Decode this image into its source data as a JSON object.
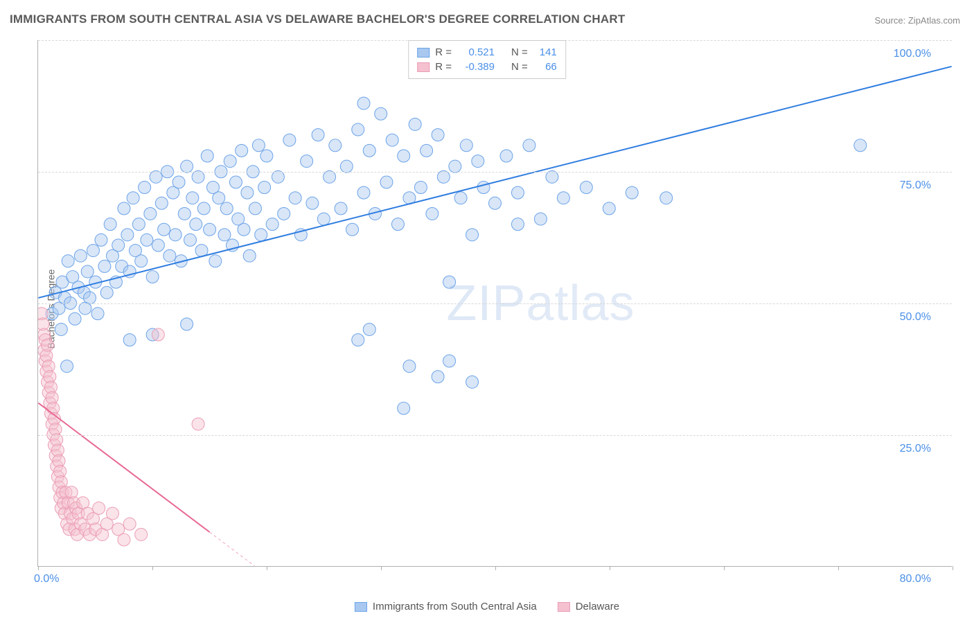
{
  "title": "IMMIGRANTS FROM SOUTH CENTRAL ASIA VS DELAWARE BACHELOR'S DEGREE CORRELATION CHART",
  "source": "Source: ZipAtlas.com",
  "watermark": "ZIPatlas",
  "chart": {
    "type": "scatter",
    "ylabel": "Bachelor's Degree",
    "xlim": [
      0,
      80
    ],
    "ylim": [
      0,
      100
    ],
    "xtick_positions": [
      0,
      10,
      20,
      30,
      40,
      50,
      60,
      70,
      80
    ],
    "xtick_labels_shown": {
      "0": "0.0%",
      "80": "80.0%"
    },
    "ytick_positions": [
      25,
      50,
      75,
      100
    ],
    "ytick_labels": {
      "25": "25.0%",
      "50": "50.0%",
      "75": "75.0%",
      "100": "100.0%"
    },
    "background_color": "#ffffff",
    "grid_color": "#d8d8d8",
    "axis_color": "#b0b0b0",
    "ytick_label_color": "#4a8fe7",
    "xtick_label_color": "#4a8fe7",
    "label_fontsize": 14,
    "tick_fontsize": 16,
    "marker_radius": 9,
    "marker_opacity": 0.45,
    "series": [
      {
        "name": "Immigrants from South Central Asia",
        "color_fill": "#a8c8f0",
        "color_stroke": "#6ca3e8",
        "R": 0.521,
        "N": 141,
        "trend": {
          "x1": 0,
          "y1": 51,
          "x2": 80,
          "y2": 95,
          "color": "#2f7de0",
          "width": 2
        },
        "points": [
          [
            1.2,
            48
          ],
          [
            1.5,
            52
          ],
          [
            1.8,
            49
          ],
          [
            2.0,
            45
          ],
          [
            2.1,
            54
          ],
          [
            2.3,
            51
          ],
          [
            2.5,
            38
          ],
          [
            2.6,
            58
          ],
          [
            2.8,
            50
          ],
          [
            3.0,
            55
          ],
          [
            3.2,
            47
          ],
          [
            3.5,
            53
          ],
          [
            3.7,
            59
          ],
          [
            4.0,
            52
          ],
          [
            4.1,
            49
          ],
          [
            4.3,
            56
          ],
          [
            4.5,
            51
          ],
          [
            4.8,
            60
          ],
          [
            5.0,
            54
          ],
          [
            5.2,
            48
          ],
          [
            5.5,
            62
          ],
          [
            5.8,
            57
          ],
          [
            6.0,
            52
          ],
          [
            6.3,
            65
          ],
          [
            6.5,
            59
          ],
          [
            6.8,
            54
          ],
          [
            7.0,
            61
          ],
          [
            7.3,
            57
          ],
          [
            7.5,
            68
          ],
          [
            7.8,
            63
          ],
          [
            8.0,
            56
          ],
          [
            8.3,
            70
          ],
          [
            8.5,
            60
          ],
          [
            8.8,
            65
          ],
          [
            9.0,
            58
          ],
          [
            9.3,
            72
          ],
          [
            9.5,
            62
          ],
          [
            9.8,
            67
          ],
          [
            10.0,
            55
          ],
          [
            10.3,
            74
          ],
          [
            10.5,
            61
          ],
          [
            10.8,
            69
          ],
          [
            11.0,
            64
          ],
          [
            11.3,
            75
          ],
          [
            11.5,
            59
          ],
          [
            11.8,
            71
          ],
          [
            12.0,
            63
          ],
          [
            12.3,
            73
          ],
          [
            12.5,
            58
          ],
          [
            12.8,
            67
          ],
          [
            13.0,
            76
          ],
          [
            13.3,
            62
          ],
          [
            13.5,
            70
          ],
          [
            13.8,
            65
          ],
          [
            14.0,
            74
          ],
          [
            14.3,
            60
          ],
          [
            14.5,
            68
          ],
          [
            14.8,
            78
          ],
          [
            15.0,
            64
          ],
          [
            15.3,
            72
          ],
          [
            15.5,
            58
          ],
          [
            15.8,
            70
          ],
          [
            16.0,
            75
          ],
          [
            16.3,
            63
          ],
          [
            16.5,
            68
          ],
          [
            16.8,
            77
          ],
          [
            17.0,
            61
          ],
          [
            17.3,
            73
          ],
          [
            17.5,
            66
          ],
          [
            17.8,
            79
          ],
          [
            18.0,
            64
          ],
          [
            18.3,
            71
          ],
          [
            18.5,
            59
          ],
          [
            18.8,
            75
          ],
          [
            19.0,
            68
          ],
          [
            19.3,
            80
          ],
          [
            19.5,
            63
          ],
          [
            19.8,
            72
          ],
          [
            20.0,
            78
          ],
          [
            20.5,
            65
          ],
          [
            21.0,
            74
          ],
          [
            21.5,
            67
          ],
          [
            22.0,
            81
          ],
          [
            22.5,
            70
          ],
          [
            23.0,
            63
          ],
          [
            23.5,
            77
          ],
          [
            24.0,
            69
          ],
          [
            24.5,
            82
          ],
          [
            25.0,
            66
          ],
          [
            25.5,
            74
          ],
          [
            26.0,
            80
          ],
          [
            26.5,
            68
          ],
          [
            27.0,
            76
          ],
          [
            27.5,
            64
          ],
          [
            28.0,
            83
          ],
          [
            28.5,
            71
          ],
          [
            29.0,
            79
          ],
          [
            29.5,
            67
          ],
          [
            30.0,
            86
          ],
          [
            30.5,
            73
          ],
          [
            31.0,
            81
          ],
          [
            31.5,
            65
          ],
          [
            32.0,
            78
          ],
          [
            32.5,
            70
          ],
          [
            33.0,
            84
          ],
          [
            33.5,
            72
          ],
          [
            34.0,
            79
          ],
          [
            34.5,
            67
          ],
          [
            35.0,
            82
          ],
          [
            35.5,
            74
          ],
          [
            36.0,
            39
          ],
          [
            36.5,
            76
          ],
          [
            37.0,
            70
          ],
          [
            37.5,
            80
          ],
          [
            38.0,
            63
          ],
          [
            38.5,
            77
          ],
          [
            39.0,
            72
          ],
          [
            28.0,
            43
          ],
          [
            29.0,
            45
          ],
          [
            40.0,
            69
          ],
          [
            41.0,
            78
          ],
          [
            42.0,
            71
          ],
          [
            43.0,
            80
          ],
          [
            44.0,
            66
          ],
          [
            45.0,
            74
          ],
          [
            46.0,
            70
          ],
          [
            48.0,
            72
          ],
          [
            50.0,
            68
          ],
          [
            52.0,
            71
          ],
          [
            55.0,
            70
          ],
          [
            32.0,
            30
          ],
          [
            35.0,
            36
          ],
          [
            32.5,
            38
          ],
          [
            38.0,
            35
          ],
          [
            36.0,
            54
          ],
          [
            42.0,
            65
          ],
          [
            72.0,
            80
          ],
          [
            10.0,
            44
          ],
          [
            13.0,
            46
          ],
          [
            8.0,
            43
          ],
          [
            28.5,
            88
          ]
        ]
      },
      {
        "name": "Delaware",
        "color_fill": "#f5c0cf",
        "color_stroke": "#eb9db5",
        "R": -0.389,
        "N": 66,
        "trend": {
          "x1": 0,
          "y1": 31,
          "x2": 22,
          "y2": -5,
          "color": "#e86994",
          "width": 2,
          "dash_after_x": 15
        },
        "points": [
          [
            0.3,
            48
          ],
          [
            0.4,
            46
          ],
          [
            0.5,
            44
          ],
          [
            0.5,
            41
          ],
          [
            0.6,
            39
          ],
          [
            0.6,
            43
          ],
          [
            0.7,
            37
          ],
          [
            0.7,
            40
          ],
          [
            0.8,
            35
          ],
          [
            0.8,
            42
          ],
          [
            0.9,
            33
          ],
          [
            0.9,
            38
          ],
          [
            1.0,
            31
          ],
          [
            1.0,
            36
          ],
          [
            1.1,
            29
          ],
          [
            1.1,
            34
          ],
          [
            1.2,
            27
          ],
          [
            1.2,
            32
          ],
          [
            1.3,
            25
          ],
          [
            1.3,
            30
          ],
          [
            1.4,
            23
          ],
          [
            1.4,
            28
          ],
          [
            1.5,
            21
          ],
          [
            1.5,
            26
          ],
          [
            1.6,
            19
          ],
          [
            1.6,
            24
          ],
          [
            1.7,
            17
          ],
          [
            1.7,
            22
          ],
          [
            1.8,
            15
          ],
          [
            1.8,
            20
          ],
          [
            1.9,
            13
          ],
          [
            1.9,
            18
          ],
          [
            2.0,
            11
          ],
          [
            2.0,
            16
          ],
          [
            2.1,
            14
          ],
          [
            2.2,
            12
          ],
          [
            2.3,
            10
          ],
          [
            2.4,
            14
          ],
          [
            2.5,
            8
          ],
          [
            2.6,
            12
          ],
          [
            2.7,
            7
          ],
          [
            2.8,
            10
          ],
          [
            2.9,
            14
          ],
          [
            3.0,
            9
          ],
          [
            3.1,
            12
          ],
          [
            3.2,
            7
          ],
          [
            3.3,
            11
          ],
          [
            3.4,
            6
          ],
          [
            3.5,
            10
          ],
          [
            3.7,
            8
          ],
          [
            3.9,
            12
          ],
          [
            4.1,
            7
          ],
          [
            4.3,
            10
          ],
          [
            4.5,
            6
          ],
          [
            4.8,
            9
          ],
          [
            5.0,
            7
          ],
          [
            5.3,
            11
          ],
          [
            5.6,
            6
          ],
          [
            6.0,
            8
          ],
          [
            6.5,
            10
          ],
          [
            7.0,
            7
          ],
          [
            7.5,
            5
          ],
          [
            8.0,
            8
          ],
          [
            9.0,
            6
          ],
          [
            10.5,
            44
          ],
          [
            14.0,
            27
          ]
        ]
      }
    ]
  },
  "legend_top": {
    "rows": [
      {
        "swatch_fill": "#a8c8f0",
        "swatch_stroke": "#6ca3e8",
        "r_label": "R =",
        "r_value": "0.521",
        "n_label": "N =",
        "n_value": "141"
      },
      {
        "swatch_fill": "#f5c0cf",
        "swatch_stroke": "#eb9db5",
        "r_label": "R =",
        "r_value": "-0.389",
        "n_label": "N =",
        "n_value": "66"
      }
    ]
  },
  "legend_bottom": {
    "items": [
      {
        "swatch_fill": "#a8c8f0",
        "swatch_stroke": "#6ca3e8",
        "label": "Immigrants from South Central Asia"
      },
      {
        "swatch_fill": "#f5c0cf",
        "swatch_stroke": "#eb9db5",
        "label": "Delaware"
      }
    ]
  }
}
